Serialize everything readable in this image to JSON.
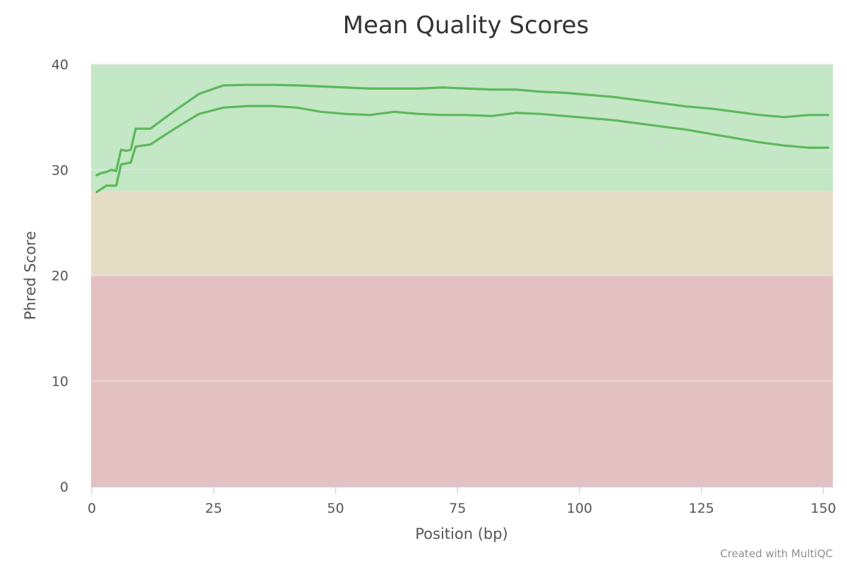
{
  "chart_data": {
    "type": "line",
    "title": "Mean Quality Scores",
    "xlabel": "Position (bp)",
    "ylabel": "Phred Score",
    "xlim": [
      0,
      152
    ],
    "ylim": [
      0,
      40
    ],
    "xticks": [
      0,
      25,
      50,
      75,
      100,
      125,
      150
    ],
    "yticks": [
      0,
      10,
      20,
      30,
      40
    ],
    "grid": true,
    "legend": "none",
    "bands": [
      {
        "from": 0,
        "to": 20,
        "color": "#e4c1c1"
      },
      {
        "from": 20,
        "to": 28,
        "color": "#e5dcc5"
      },
      {
        "from": 28,
        "to": 40,
        "color": "#c4e7c5"
      }
    ],
    "series": [
      {
        "color": "#5cb85c",
        "x": [
          1,
          2,
          3,
          4,
          5,
          6,
          7,
          8,
          9,
          12,
          17,
          22,
          27,
          32,
          37,
          42,
          47,
          52,
          57,
          62,
          67,
          72,
          77,
          82,
          87,
          92,
          97,
          102,
          107,
          112,
          117,
          122,
          127,
          132,
          137,
          142,
          147,
          151
        ],
        "values": [
          29.5,
          29.7,
          29.8,
          30.0,
          29.9,
          31.9,
          31.8,
          31.9,
          33.9,
          33.9,
          35.6,
          37.2,
          38.0,
          38.05,
          38.05,
          38.0,
          37.9,
          37.8,
          37.7,
          37.7,
          37.7,
          37.8,
          37.7,
          37.6,
          37.6,
          37.4,
          37.3,
          37.1,
          36.9,
          36.6,
          36.3,
          36.0,
          35.8,
          35.5,
          35.2,
          35.0,
          35.2,
          35.2
        ]
      },
      {
        "color": "#5cb85c",
        "x": [
          1,
          2,
          3,
          4,
          5,
          6,
          7,
          8,
          9,
          12,
          17,
          22,
          27,
          32,
          37,
          42,
          47,
          52,
          57,
          62,
          67,
          72,
          77,
          82,
          87,
          92,
          97,
          102,
          107,
          112,
          117,
          122,
          127,
          132,
          137,
          142,
          147,
          151
        ],
        "values": [
          27.9,
          28.2,
          28.5,
          28.5,
          28.5,
          30.5,
          30.6,
          30.7,
          32.2,
          32.4,
          33.9,
          35.3,
          35.9,
          36.05,
          36.05,
          35.9,
          35.5,
          35.3,
          35.2,
          35.5,
          35.3,
          35.2,
          35.2,
          35.1,
          35.4,
          35.3,
          35.1,
          34.9,
          34.7,
          34.4,
          34.1,
          33.8,
          33.4,
          33.0,
          32.6,
          32.3,
          32.1,
          32.1
        ]
      }
    ]
  },
  "credit_text": "Created with MultiQC"
}
